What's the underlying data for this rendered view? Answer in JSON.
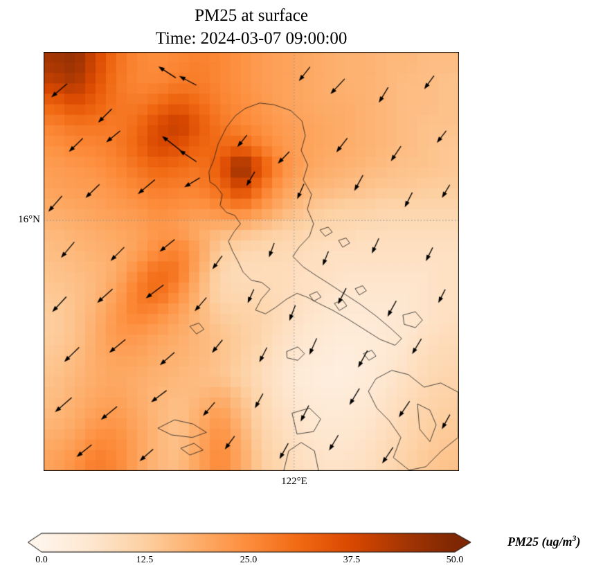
{
  "chart_data": {
    "type": "heatmap",
    "title": "PM25 at surface",
    "subtitle": "Time: 2024-03-07 09:00:00",
    "axes": {
      "ytick": "16°N",
      "xtick": "122°E",
      "ytick_frac": 0.402,
      "xtick_frac": 0.603,
      "grid_on": true
    },
    "colorbar": {
      "min": 0,
      "max": 50,
      "ticks": [
        "0.0",
        "12.5",
        "25.0",
        "37.5",
        "50.0"
      ],
      "label_prefix": "PM25 (ug/m",
      "label_sup": "3",
      "label_suffix": ")",
      "extend": "both"
    },
    "colormap": [
      [
        0.0,
        "#fff5eb"
      ],
      [
        0.125,
        "#fee6ce"
      ],
      [
        0.25,
        "#fdd0a2"
      ],
      [
        0.375,
        "#fdae6b"
      ],
      [
        0.5,
        "#fd8d3c"
      ],
      [
        0.625,
        "#f16913"
      ],
      [
        0.75,
        "#d94801"
      ],
      [
        0.875,
        "#a63603"
      ],
      [
        1.0,
        "#7f2704"
      ]
    ],
    "grid": [
      [
        44,
        46,
        38,
        30,
        26,
        25,
        26,
        27,
        26,
        24,
        22,
        21,
        20,
        19,
        18,
        18,
        17,
        17,
        16,
        16
      ],
      [
        40,
        43,
        36,
        29,
        26,
        26,
        28,
        28,
        26,
        24,
        22,
        21,
        20,
        19,
        18,
        18,
        17,
        16,
        16,
        15
      ],
      [
        32,
        36,
        33,
        29,
        28,
        31,
        34,
        31,
        27,
        25,
        23,
        21,
        20,
        19,
        19,
        18,
        17,
        16,
        16,
        15
      ],
      [
        27,
        29,
        29,
        28,
        31,
        37,
        41,
        34,
        29,
        26,
        24,
        22,
        21,
        20,
        19,
        18,
        17,
        16,
        15,
        15
      ],
      [
        24,
        26,
        26,
        28,
        32,
        38,
        36,
        32,
        31,
        32,
        27,
        23,
        21,
        20,
        19,
        18,
        17,
        16,
        15,
        14
      ],
      [
        22,
        23,
        24,
        26,
        29,
        32,
        31,
        29,
        34,
        48,
        35,
        25,
        21,
        19,
        18,
        17,
        16,
        15,
        15,
        14
      ],
      [
        21,
        22,
        22,
        24,
        26,
        28,
        27,
        27,
        31,
        39,
        29,
        22,
        18,
        17,
        16,
        15,
        14,
        14,
        13,
        13
      ],
      [
        19,
        20,
        21,
        22,
        23,
        25,
        24,
        23,
        25,
        27,
        23,
        18,
        15,
        13,
        12,
        12,
        11,
        11,
        11,
        11
      ],
      [
        17,
        18,
        19,
        20,
        21,
        23,
        22,
        19,
        17,
        16,
        14,
        12,
        11,
        10,
        10,
        9,
        9,
        9,
        9,
        9
      ],
      [
        16,
        17,
        18,
        19,
        21,
        25,
        27,
        21,
        13,
        11,
        10,
        10,
        9,
        8,
        8,
        8,
        8,
        8,
        8,
        8
      ],
      [
        15,
        16,
        17,
        19,
        25,
        31,
        29,
        19,
        11,
        9,
        9,
        9,
        8,
        8,
        7,
        7,
        7,
        7,
        7,
        8
      ],
      [
        14,
        15,
        17,
        21,
        28,
        31,
        25,
        17,
        11,
        10,
        10,
        9,
        8,
        7,
        6,
        6,
        6,
        6,
        7,
        8
      ],
      [
        13,
        15,
        18,
        23,
        27,
        25,
        21,
        17,
        13,
        12,
        11,
        9,
        7,
        6,
        5,
        5,
        5,
        6,
        7,
        8
      ],
      [
        13,
        15,
        19,
        23,
        23,
        21,
        19,
        17,
        15,
        13,
        11,
        8,
        6,
        5,
        4,
        4,
        5,
        6,
        8,
        9
      ],
      [
        14,
        16,
        19,
        21,
        21,
        19,
        18,
        17,
        15,
        13,
        10,
        7,
        5,
        4,
        3,
        4,
        5,
        7,
        9,
        10
      ],
      [
        15,
        17,
        19,
        20,
        19,
        18,
        17,
        16,
        15,
        12,
        9,
        6,
        4,
        3,
        3,
        4,
        6,
        8,
        10,
        11
      ],
      [
        16,
        18,
        20,
        21,
        19,
        17,
        16,
        17,
        19,
        15,
        10,
        7,
        5,
        4,
        4,
        5,
        7,
        9,
        11,
        12
      ],
      [
        17,
        19,
        22,
        23,
        20,
        17,
        15,
        19,
        23,
        17,
        11,
        8,
        6,
        5,
        5,
        6,
        8,
        10,
        12,
        13
      ],
      [
        19,
        21,
        25,
        25,
        21,
        17,
        15,
        20,
        25,
        19,
        12,
        9,
        7,
        6,
        6,
        7,
        9,
        11,
        13,
        14
      ],
      [
        21,
        24,
        28,
        26,
        21,
        17,
        16,
        21,
        26,
        20,
        13,
        10,
        8,
        7,
        7,
        8,
        10,
        12,
        14,
        15
      ]
    ],
    "wind": [
      [
        0.04,
        0.09,
        140,
        26
      ],
      [
        0.15,
        0.15,
        135,
        24
      ],
      [
        0.3,
        0.05,
        213,
        26
      ],
      [
        0.35,
        0.07,
        208,
        24
      ],
      [
        0.63,
        0.05,
        128,
        22
      ],
      [
        0.71,
        0.08,
        133,
        26
      ],
      [
        0.82,
        0.1,
        121,
        22
      ],
      [
        0.93,
        0.07,
        126,
        20
      ],
      [
        0.08,
        0.22,
        136,
        24
      ],
      [
        0.17,
        0.2,
        141,
        22
      ],
      [
        0.31,
        0.22,
        218,
        30
      ],
      [
        0.35,
        0.25,
        214,
        26
      ],
      [
        0.48,
        0.21,
        129,
        18
      ],
      [
        0.58,
        0.25,
        134,
        20
      ],
      [
        0.72,
        0.22,
        128,
        22
      ],
      [
        0.85,
        0.24,
        124,
        22
      ],
      [
        0.96,
        0.2,
        128,
        18
      ],
      [
        0.03,
        0.36,
        131,
        26
      ],
      [
        0.12,
        0.33,
        136,
        24
      ],
      [
        0.25,
        0.32,
        140,
        28
      ],
      [
        0.36,
        0.31,
        149,
        22
      ],
      [
        0.5,
        0.3,
        120,
        20
      ],
      [
        0.62,
        0.33,
        114,
        20
      ],
      [
        0.76,
        0.31,
        119,
        22
      ],
      [
        0.88,
        0.35,
        117,
        20
      ],
      [
        0.97,
        0.33,
        121,
        18
      ],
      [
        0.06,
        0.47,
        130,
        26
      ],
      [
        0.18,
        0.48,
        135,
        24
      ],
      [
        0.3,
        0.46,
        141,
        24
      ],
      [
        0.42,
        0.5,
        126,
        20
      ],
      [
        0.55,
        0.47,
        110,
        18
      ],
      [
        0.68,
        0.49,
        112,
        18
      ],
      [
        0.8,
        0.46,
        115,
        20
      ],
      [
        0.93,
        0.48,
        117,
        18
      ],
      [
        0.04,
        0.6,
        133,
        26
      ],
      [
        0.15,
        0.58,
        138,
        26
      ],
      [
        0.27,
        0.57,
        143,
        28
      ],
      [
        0.38,
        0.6,
        131,
        22
      ],
      [
        0.5,
        0.58,
        114,
        18
      ],
      [
        0.6,
        0.62,
        111,
        20
      ],
      [
        0.72,
        0.58,
        117,
        22
      ],
      [
        0.84,
        0.61,
        119,
        22
      ],
      [
        0.96,
        0.58,
        117,
        18
      ],
      [
        0.07,
        0.72,
        136,
        26
      ],
      [
        0.18,
        0.7,
        141,
        26
      ],
      [
        0.3,
        0.73,
        139,
        24
      ],
      [
        0.42,
        0.7,
        129,
        20
      ],
      [
        0.53,
        0.72,
        117,
        20
      ],
      [
        0.65,
        0.7,
        114,
        22
      ],
      [
        0.77,
        0.73,
        119,
        24
      ],
      [
        0.9,
        0.7,
        121,
        22
      ],
      [
        0.05,
        0.84,
        139,
        28
      ],
      [
        0.16,
        0.86,
        141,
        26
      ],
      [
        0.28,
        0.82,
        143,
        24
      ],
      [
        0.4,
        0.85,
        131,
        22
      ],
      [
        0.52,
        0.83,
        119,
        20
      ],
      [
        0.63,
        0.86,
        117,
        22
      ],
      [
        0.75,
        0.82,
        121,
        24
      ],
      [
        0.87,
        0.85,
        124,
        24
      ],
      [
        0.97,
        0.88,
        119,
        20
      ],
      [
        0.1,
        0.95,
        141,
        24
      ],
      [
        0.25,
        0.96,
        139,
        22
      ],
      [
        0.45,
        0.93,
        126,
        20
      ],
      [
        0.58,
        0.95,
        119,
        22
      ],
      [
        0.7,
        0.93,
        121,
        22
      ],
      [
        0.83,
        0.96,
        124,
        24
      ]
    ],
    "coastlines": [
      [
        [
          0.485,
          0.135
        ],
        [
          0.52,
          0.122
        ],
        [
          0.555,
          0.126
        ],
        [
          0.595,
          0.14
        ],
        [
          0.622,
          0.165
        ],
        [
          0.63,
          0.2
        ],
        [
          0.62,
          0.235
        ],
        [
          0.636,
          0.27
        ],
        [
          0.625,
          0.305
        ],
        [
          0.645,
          0.34
        ],
        [
          0.635,
          0.375
        ],
        [
          0.65,
          0.41
        ],
        [
          0.64,
          0.44
        ],
        [
          0.616,
          0.465
        ],
        [
          0.6,
          0.488
        ],
        [
          0.625,
          0.513
        ],
        [
          0.655,
          0.533
        ],
        [
          0.69,
          0.555
        ],
        [
          0.725,
          0.578
        ],
        [
          0.762,
          0.602
        ],
        [
          0.8,
          0.63
        ],
        [
          0.836,
          0.66
        ],
        [
          0.862,
          0.684
        ],
        [
          0.846,
          0.7
        ],
        [
          0.81,
          0.686
        ],
        [
          0.77,
          0.661
        ],
        [
          0.73,
          0.636
        ],
        [
          0.695,
          0.616
        ],
        [
          0.662,
          0.6
        ],
        [
          0.636,
          0.586
        ],
        [
          0.61,
          0.576
        ],
        [
          0.585,
          0.59
        ],
        [
          0.558,
          0.61
        ],
        [
          0.534,
          0.625
        ],
        [
          0.51,
          0.616
        ],
        [
          0.524,
          0.59
        ],
        [
          0.545,
          0.566
        ],
        [
          0.525,
          0.55
        ],
        [
          0.5,
          0.545
        ],
        [
          0.48,
          0.525
        ],
        [
          0.468,
          0.5
        ],
        [
          0.455,
          0.476
        ],
        [
          0.445,
          0.452
        ],
        [
          0.458,
          0.43
        ],
        [
          0.474,
          0.41
        ],
        [
          0.46,
          0.39
        ],
        [
          0.44,
          0.383
        ],
        [
          0.425,
          0.366
        ],
        [
          0.43,
          0.34
        ],
        [
          0.415,
          0.32
        ],
        [
          0.4,
          0.31
        ],
        [
          0.398,
          0.286
        ],
        [
          0.41,
          0.256
        ],
        [
          0.42,
          0.22
        ],
        [
          0.44,
          0.18
        ],
        [
          0.462,
          0.152
        ],
        [
          0.485,
          0.135
        ]
      ],
      [
        [
          0.665,
          0.425
        ],
        [
          0.685,
          0.418
        ],
        [
          0.695,
          0.43
        ],
        [
          0.678,
          0.44
        ],
        [
          0.665,
          0.425
        ]
      ],
      [
        [
          0.71,
          0.45
        ],
        [
          0.728,
          0.444
        ],
        [
          0.737,
          0.456
        ],
        [
          0.72,
          0.466
        ],
        [
          0.71,
          0.45
        ]
      ],
      [
        [
          0.64,
          0.58
        ],
        [
          0.658,
          0.572
        ],
        [
          0.668,
          0.585
        ],
        [
          0.65,
          0.595
        ],
        [
          0.64,
          0.58
        ]
      ],
      [
        [
          0.7,
          0.6
        ],
        [
          0.72,
          0.592
        ],
        [
          0.73,
          0.606
        ],
        [
          0.712,
          0.617
        ],
        [
          0.7,
          0.6
        ]
      ],
      [
        [
          0.75,
          0.565
        ],
        [
          0.768,
          0.558
        ],
        [
          0.777,
          0.57
        ],
        [
          0.76,
          0.58
        ],
        [
          0.75,
          0.565
        ]
      ],
      [
        [
          0.865,
          0.628
        ],
        [
          0.895,
          0.62
        ],
        [
          0.912,
          0.64
        ],
        [
          0.895,
          0.658
        ],
        [
          0.868,
          0.65
        ],
        [
          0.865,
          0.628
        ]
      ],
      [
        [
          0.585,
          0.715
        ],
        [
          0.612,
          0.704
        ],
        [
          0.628,
          0.72
        ],
        [
          0.612,
          0.736
        ],
        [
          0.586,
          0.73
        ],
        [
          0.585,
          0.715
        ]
      ],
      [
        [
          0.352,
          0.655
        ],
        [
          0.374,
          0.647
        ],
        [
          0.386,
          0.662
        ],
        [
          0.368,
          0.673
        ],
        [
          0.352,
          0.655
        ]
      ],
      [
        [
          0.275,
          0.898
        ],
        [
          0.315,
          0.878
        ],
        [
          0.36,
          0.888
        ],
        [
          0.392,
          0.908
        ],
        [
          0.358,
          0.92
        ],
        [
          0.308,
          0.914
        ],
        [
          0.275,
          0.898
        ]
      ],
      [
        [
          0.33,
          0.946
        ],
        [
          0.362,
          0.934
        ],
        [
          0.384,
          0.95
        ],
        [
          0.352,
          0.962
        ],
        [
          0.33,
          0.946
        ]
      ],
      [
        [
          0.598,
          0.862
        ],
        [
          0.64,
          0.85
        ],
        [
          0.667,
          0.876
        ],
        [
          0.65,
          0.906
        ],
        [
          0.61,
          0.912
        ],
        [
          0.598,
          0.862
        ]
      ],
      [
        [
          0.578,
          1.0
        ],
        [
          0.59,
          0.952
        ],
        [
          0.62,
          0.932
        ],
        [
          0.652,
          0.952
        ],
        [
          0.662,
          1.0
        ]
      ],
      [
        [
          0.8,
          0.78
        ],
        [
          0.838,
          0.76
        ],
        [
          0.878,
          0.77
        ],
        [
          0.916,
          0.8
        ],
        [
          0.956,
          0.79
        ],
        [
          0.998,
          0.812
        ],
        [
          0.998,
          0.92
        ],
        [
          0.958,
          0.952
        ],
        [
          0.92,
          0.99
        ],
        [
          0.88,
          0.998
        ],
        [
          0.842,
          0.968
        ],
        [
          0.86,
          0.92
        ],
        [
          0.832,
          0.88
        ],
        [
          0.802,
          0.85
        ],
        [
          0.782,
          0.81
        ],
        [
          0.8,
          0.78
        ]
      ],
      [
        [
          0.9,
          0.84
        ],
        [
          0.93,
          0.855
        ],
        [
          0.945,
          0.89
        ],
        [
          0.93,
          0.93
        ],
        [
          0.905,
          0.9
        ],
        [
          0.9,
          0.84
        ]
      ],
      [
        [
          0.77,
          0.72
        ],
        [
          0.79,
          0.712
        ],
        [
          0.8,
          0.726
        ],
        [
          0.783,
          0.736
        ],
        [
          0.77,
          0.72
        ]
      ]
    ]
  }
}
